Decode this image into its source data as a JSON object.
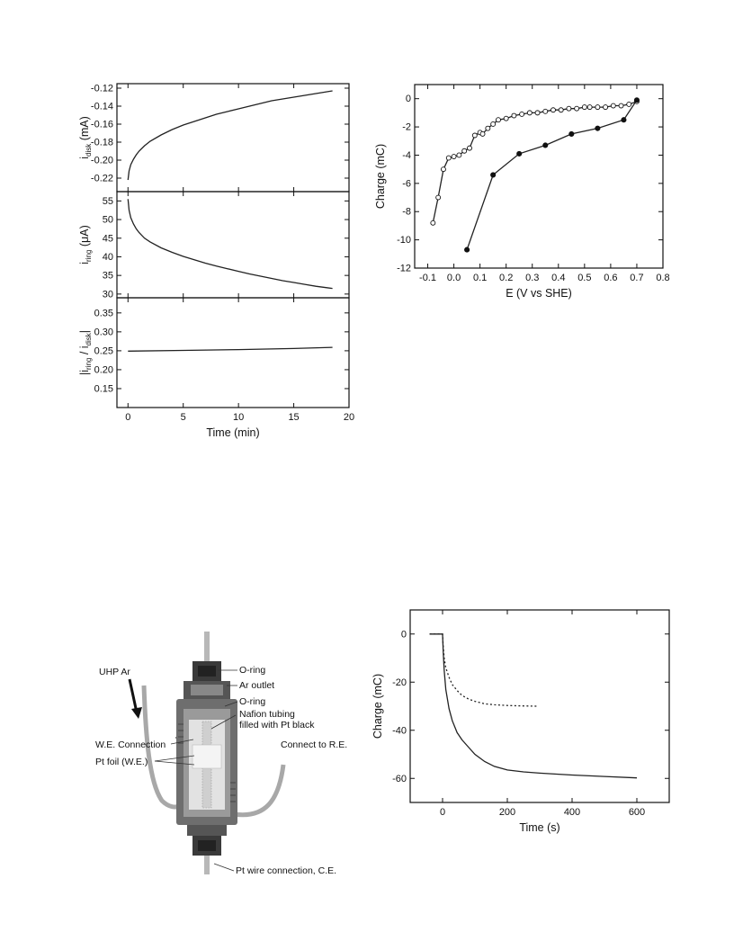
{
  "chart_data": [
    {
      "type": "line",
      "panel": "i_disk",
      "xlim": [
        -1,
        20
      ],
      "ylim": [
        -0.235,
        -0.115
      ],
      "yticks": [
        "-0.12",
        "-0.14",
        "-0.16",
        "-0.18",
        "-0.20",
        "-0.22"
      ],
      "ytick_values": [
        -0.12,
        -0.14,
        -0.16,
        -0.18,
        -0.2,
        -0.22
      ],
      "ylabel": "i",
      "ylabel_sub": "disk",
      "ylabel_unit": "(mA)",
      "series": [
        {
          "x": [
            0,
            0.1,
            0.25,
            0.5,
            0.75,
            1,
            1.5,
            2,
            3,
            4,
            5,
            6,
            7,
            8,
            9,
            10,
            11,
            12,
            13,
            14,
            15,
            16,
            17,
            18,
            18.5
          ],
          "y": [
            -0.222,
            -0.212,
            -0.205,
            -0.199,
            -0.194,
            -0.19,
            -0.184,
            -0.179,
            -0.172,
            -0.166,
            -0.161,
            -0.157,
            -0.153,
            -0.149,
            -0.146,
            -0.143,
            -0.14,
            -0.137,
            -0.134,
            -0.132,
            -0.13,
            -0.128,
            -0.126,
            -0.124,
            -0.123
          ]
        }
      ]
    },
    {
      "type": "line",
      "panel": "i_ring",
      "xlim": [
        -1,
        20
      ],
      "ylim": [
        29,
        57.5
      ],
      "yticks": [
        "55",
        "50",
        "45",
        "40",
        "35",
        "30"
      ],
      "ytick_values": [
        55,
        50,
        45,
        40,
        35,
        30
      ],
      "ylabel": "i",
      "ylabel_sub": "ring",
      "ylabel_unit": "(μA)",
      "series": [
        {
          "x": [
            0,
            0.1,
            0.25,
            0.5,
            0.75,
            1,
            1.5,
            2,
            3,
            4,
            5,
            6,
            7,
            8,
            9,
            10,
            11,
            12,
            13,
            14,
            15,
            16,
            17,
            18,
            18.5
          ],
          "y": [
            55.5,
            52.5,
            50.5,
            48.8,
            47.5,
            46.5,
            45.0,
            44.0,
            42.4,
            41.2,
            40.1,
            39.2,
            38.3,
            37.5,
            36.8,
            36.1,
            35.4,
            34.8,
            34.2,
            33.6,
            33.1,
            32.6,
            32.1,
            31.7,
            31.5
          ]
        }
      ]
    },
    {
      "type": "line",
      "panel": "ratio",
      "xlim": [
        -1,
        20
      ],
      "ylim": [
        0.1,
        0.39
      ],
      "yticks": [
        "0.35",
        "0.30",
        "0.25",
        "0.20",
        "0.15"
      ],
      "ytick_values": [
        0.35,
        0.3,
        0.25,
        0.2,
        0.15
      ],
      "xticks": [
        "0",
        "5",
        "10",
        "15",
        "20"
      ],
      "xtick_values": [
        0,
        5,
        10,
        15,
        20
      ],
      "ylabel": "|i",
      "ylabel_sub1": "ring",
      "ylabel_mid": " / i",
      "ylabel_sub2": "disk",
      "ylabel_end": "|",
      "xlabel": "Time (min)",
      "series": [
        {
          "x": [
            0,
            5,
            10,
            15,
            18.5
          ],
          "y": [
            0.249,
            0.251,
            0.253,
            0.256,
            0.259
          ]
        }
      ]
    },
    {
      "type": "scatter",
      "panel": "charge_vs_E",
      "xlim": [
        -0.15,
        0.8
      ],
      "ylim": [
        -12,
        1
      ],
      "xticks": [
        "-0.1",
        "0.0",
        "0.1",
        "0.2",
        "0.3",
        "0.4",
        "0.5",
        "0.6",
        "0.7",
        "0.8"
      ],
      "xtick_values": [
        -0.1,
        0,
        0.1,
        0.2,
        0.3,
        0.4,
        0.5,
        0.6,
        0.7,
        0.8
      ],
      "yticks": [
        "0",
        "-2",
        "-4",
        "-6",
        "-8",
        "-10",
        "-12"
      ],
      "ytick_values": [
        0,
        -2,
        -4,
        -6,
        -8,
        -10,
        -12
      ],
      "xlabel": "E (V vs SHE)",
      "ylabel": "Charge (mC)",
      "series": [
        {
          "marker": "open",
          "x": [
            -0.08,
            -0.06,
            -0.04,
            -0.02,
            0.0,
            0.02,
            0.04,
            0.06,
            0.08,
            0.1,
            0.11,
            0.13,
            0.15,
            0.17,
            0.2,
            0.23,
            0.26,
            0.29,
            0.32,
            0.35,
            0.38,
            0.41,
            0.44,
            0.47,
            0.5,
            0.52,
            0.55,
            0.58,
            0.61,
            0.64,
            0.67,
            0.7
          ],
          "y": [
            -8.8,
            -7.0,
            -5.0,
            -4.2,
            -4.1,
            -4.0,
            -3.7,
            -3.5,
            -2.6,
            -2.4,
            -2.5,
            -2.1,
            -1.8,
            -1.5,
            -1.4,
            -1.2,
            -1.1,
            -1.0,
            -1.0,
            -0.9,
            -0.8,
            -0.8,
            -0.7,
            -0.7,
            -0.6,
            -0.6,
            -0.6,
            -0.6,
            -0.5,
            -0.5,
            -0.4,
            -0.2
          ]
        },
        {
          "marker": "filled",
          "x": [
            0.05,
            0.15,
            0.25,
            0.35,
            0.45,
            0.55,
            0.65,
            0.7
          ],
          "y": [
            -10.7,
            -5.4,
            -3.9,
            -3.3,
            -2.5,
            -2.1,
            -1.5,
            -0.1
          ]
        }
      ]
    },
    {
      "type": "line",
      "panel": "charge_vs_time",
      "xlim": [
        -100,
        700
      ],
      "ylim": [
        -70,
        10
      ],
      "xticks": [
        "0",
        "200",
        "400",
        "600"
      ],
      "xtick_values": [
        0,
        200,
        400,
        600
      ],
      "yticks": [
        "0",
        "-20",
        "-40",
        "-60"
      ],
      "ytick_values": [
        0,
        -20,
        -40,
        -60
      ],
      "xlabel": "Time (s)",
      "ylabel": "Charge (mC)",
      "series": [
        {
          "style": "solid",
          "x": [
            -40,
            -5,
            0,
            2,
            5,
            10,
            20,
            30,
            45,
            60,
            80,
            100,
            130,
            160,
            200,
            250,
            300,
            400,
            500,
            600
          ],
          "y": [
            0,
            0,
            0,
            -7,
            -15,
            -23,
            -31,
            -36,
            -41,
            -44,
            -47,
            -50,
            -53,
            -55,
            -56.5,
            -57.3,
            -57.8,
            -58.6,
            -59.2,
            -59.8
          ]
        },
        {
          "style": "dotted",
          "x": [
            -40,
            -5,
            0,
            2,
            5,
            10,
            20,
            30,
            45,
            60,
            80,
            100,
            130,
            160,
            200,
            250,
            290
          ],
          "y": [
            0,
            0,
            0,
            -5,
            -10,
            -14,
            -18,
            -21,
            -23.5,
            -25.5,
            -27,
            -28,
            -29,
            -29.4,
            -29.7,
            -29.9,
            -30
          ]
        }
      ]
    }
  ],
  "diagram": {
    "labels": {
      "uhp_ar": "UHP Ar",
      "o_ring_top": "O-ring",
      "ar_outlet": "Ar outlet",
      "o_ring_mid": "O-ring",
      "nafion_1": "Nafion tubing",
      "nafion_2": "filled with Pt black",
      "connect_re": "Connect to R.E.",
      "we_connection": "W.E. Connection",
      "pt_foil": "Pt foil (W.E.)",
      "pt_wire": "Pt wire connection, C.E."
    }
  }
}
